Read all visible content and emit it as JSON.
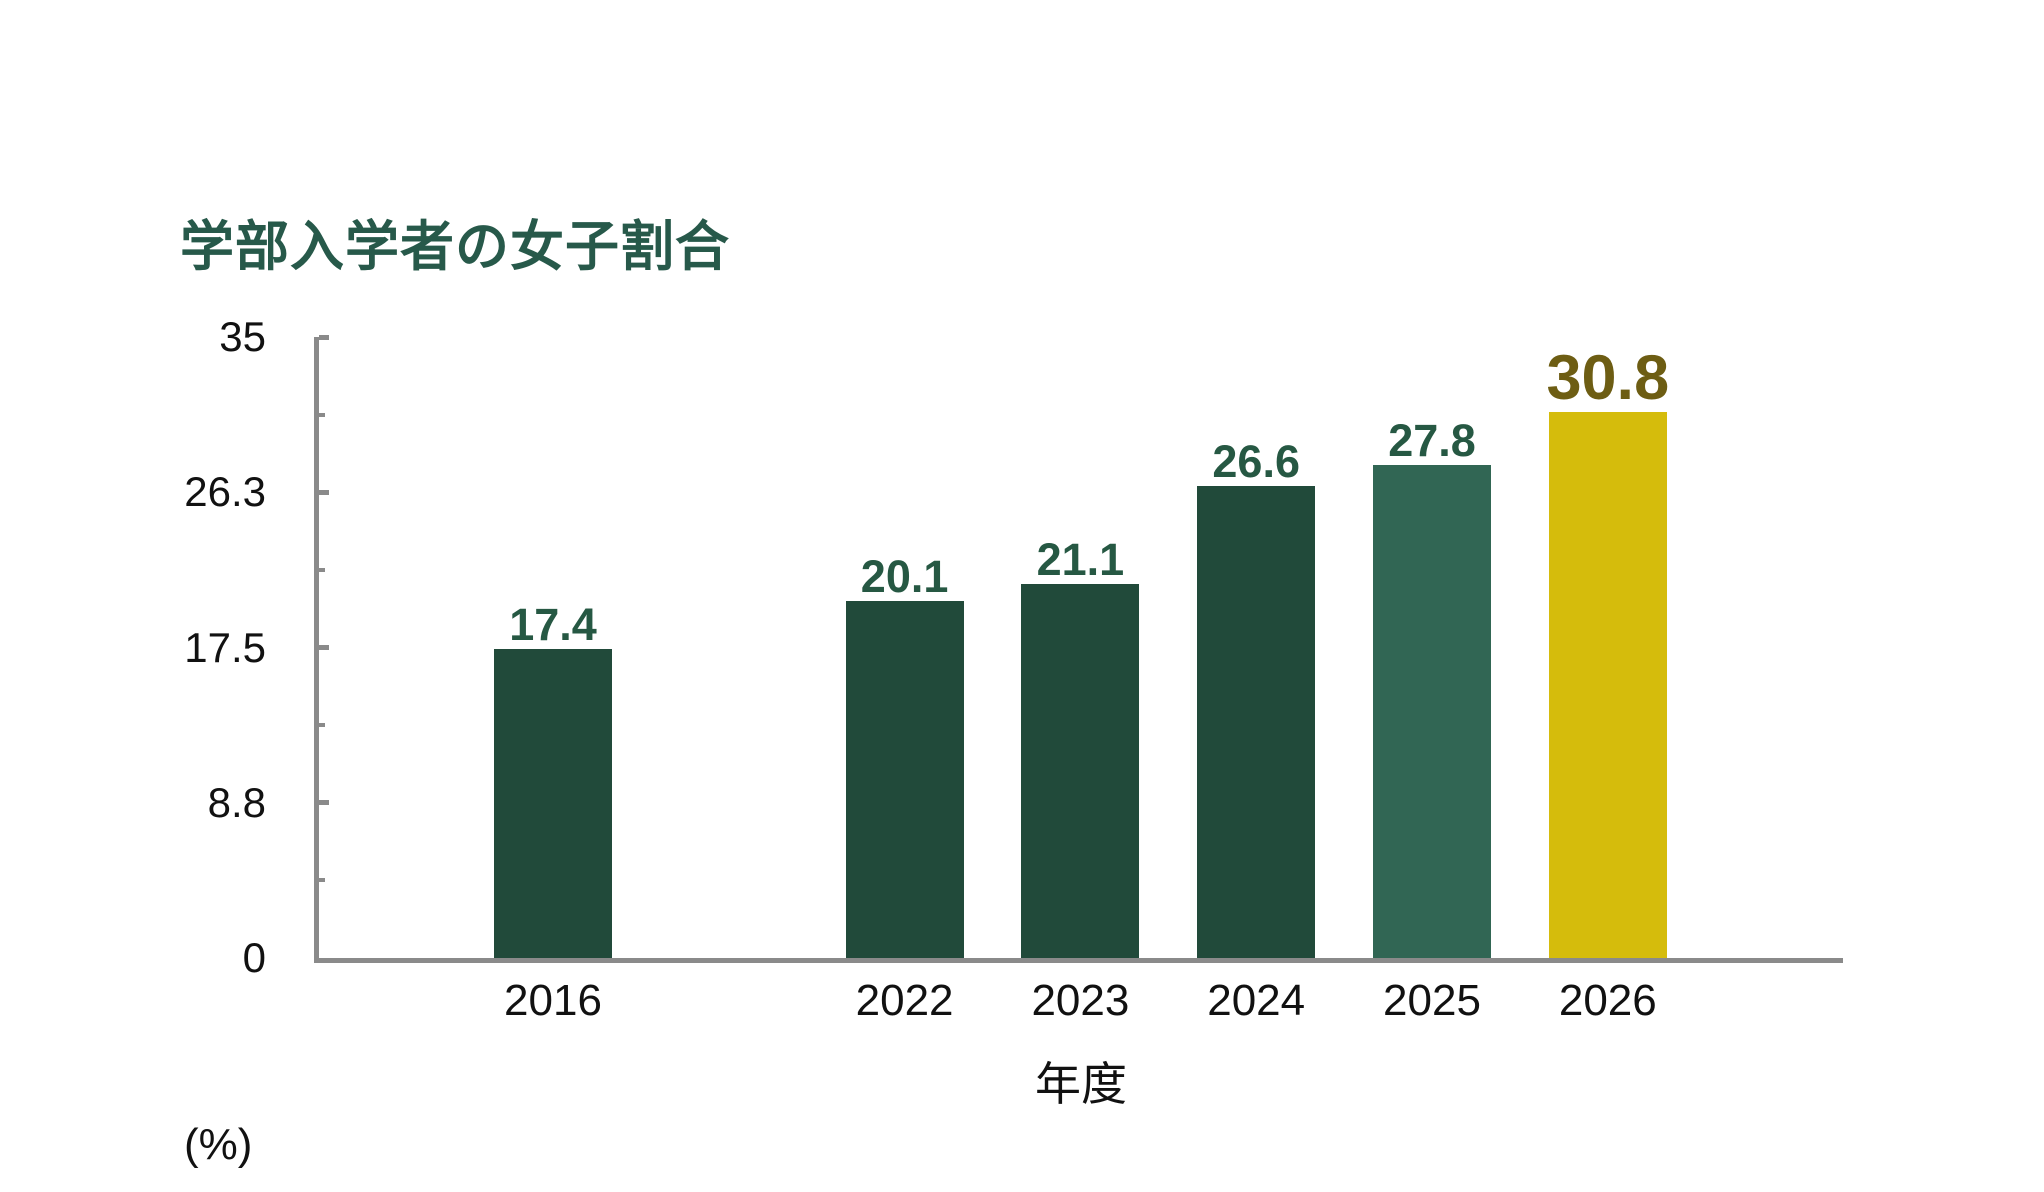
{
  "title": "学部入学者の女子割合",
  "chart_data": {
    "type": "bar",
    "title": "学部入学者の女子割合",
    "xlabel": "年度",
    "unit_label": "(%)",
    "ylim": [
      0,
      35
    ],
    "grid": false,
    "legend": "none",
    "categories": [
      "2016",
      "2022",
      "2023",
      "2024",
      "2025",
      "2026"
    ],
    "values": [
      17.4,
      20.1,
      21.1,
      26.6,
      27.8,
      30.8
    ],
    "y_ticks": [
      {
        "value": 35,
        "label": "35"
      },
      {
        "value": 26.25,
        "label": "26.3"
      },
      {
        "value": 17.5,
        "label": "17.5"
      },
      {
        "value": 8.75,
        "label": "8.8"
      },
      {
        "value": 0,
        "label": "0"
      }
    ],
    "y_minor_ticks": [
      30.625,
      21.875,
      13.125,
      4.375
    ],
    "bars": [
      {
        "category": "2016",
        "value": 17.4,
        "label": "17.4",
        "slot": 0,
        "color": "dark_green",
        "label_style": "green"
      },
      {
        "category": "2022",
        "value": 20.1,
        "label": "20.1",
        "slot": 2,
        "color": "dark_green",
        "label_style": "green"
      },
      {
        "category": "2023",
        "value": 21.1,
        "label": "21.1",
        "slot": 3,
        "color": "dark_green",
        "label_style": "green"
      },
      {
        "category": "2024",
        "value": 26.6,
        "label": "26.6",
        "slot": 4,
        "color": "dark_green",
        "label_style": "green"
      },
      {
        "category": "2025",
        "value": 27.8,
        "label": "27.8",
        "slot": 5,
        "color": "medium_green",
        "label_style": "green"
      },
      {
        "category": "2026",
        "value": 30.8,
        "label": "30.8",
        "slot": 6,
        "color": "gold",
        "label_style": "gold_large"
      }
    ]
  },
  "colors": {
    "dark_green": "#214A3A",
    "medium_green": "#316654",
    "gold": "#D5BC0C",
    "title_green": "#27594A",
    "value_label_green": "#265843",
    "value_label_gold": "#6D5D13",
    "axis_gray": "#8A8A8A",
    "text": "#111111",
    "background": "#FFFFFF"
  }
}
